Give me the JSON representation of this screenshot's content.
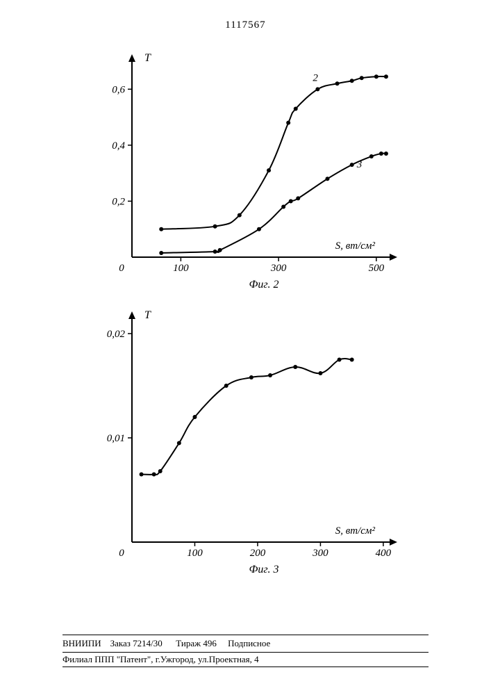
{
  "doc_number": "1117567",
  "fig2": {
    "type": "line",
    "caption": "Фиг. 2",
    "y_label": "T",
    "x_label": "S, вт/см²",
    "x_ticks": [
      0,
      100,
      300,
      500
    ],
    "y_ticks": [
      0,
      0.2,
      0.4,
      0.6
    ],
    "xlim": [
      0,
      540
    ],
    "ylim": [
      0,
      0.72
    ],
    "series": [
      {
        "label": "2",
        "label_x": 370,
        "label_y": 0.63,
        "points": [
          {
            "x": 60,
            "y": 0.1
          },
          {
            "x": 170,
            "y": 0.11
          },
          {
            "x": 220,
            "y": 0.15
          },
          {
            "x": 280,
            "y": 0.31
          },
          {
            "x": 320,
            "y": 0.48
          },
          {
            "x": 335,
            "y": 0.53
          },
          {
            "x": 380,
            "y": 0.6
          },
          {
            "x": 420,
            "y": 0.62
          },
          {
            "x": 450,
            "y": 0.63
          },
          {
            "x": 470,
            "y": 0.64
          },
          {
            "x": 500,
            "y": 0.645
          },
          {
            "x": 520,
            "y": 0.645
          }
        ]
      },
      {
        "label": "3",
        "label_x": 460,
        "label_y": 0.32,
        "points": [
          {
            "x": 60,
            "y": 0.015
          },
          {
            "x": 170,
            "y": 0.02
          },
          {
            "x": 180,
            "y": 0.025
          },
          {
            "x": 260,
            "y": 0.1
          },
          {
            "x": 310,
            "y": 0.18
          },
          {
            "x": 325,
            "y": 0.2
          },
          {
            "x": 340,
            "y": 0.21
          },
          {
            "x": 400,
            "y": 0.28
          },
          {
            "x": 450,
            "y": 0.33
          },
          {
            "x": 490,
            "y": 0.36
          },
          {
            "x": 510,
            "y": 0.37
          },
          {
            "x": 520,
            "y": 0.37
          }
        ]
      }
    ],
    "line_color": "#000000",
    "marker_radius": 3,
    "axis_width": 2,
    "tick_len": 6,
    "arrowhead": 9,
    "font_axis": 15,
    "font_caption": 16,
    "font_series": 15
  },
  "fig3": {
    "type": "line",
    "caption": "Фиг. 3",
    "y_label": "T",
    "x_label": "S, вт/см²",
    "x_ticks": [
      0,
      100,
      200,
      300,
      400
    ],
    "y_ticks": [
      0,
      0.01,
      0.02
    ],
    "xlim": [
      0,
      420
    ],
    "ylim": [
      0,
      0.022
    ],
    "series": [
      {
        "label": "",
        "points": [
          {
            "x": 15,
            "y": 0.0065
          },
          {
            "x": 35,
            "y": 0.0065
          },
          {
            "x": 45,
            "y": 0.0068
          },
          {
            "x": 75,
            "y": 0.0095
          },
          {
            "x": 100,
            "y": 0.012
          },
          {
            "x": 150,
            "y": 0.015
          },
          {
            "x": 190,
            "y": 0.0158
          },
          {
            "x": 220,
            "y": 0.016
          },
          {
            "x": 260,
            "y": 0.0168
          },
          {
            "x": 300,
            "y": 0.0162
          },
          {
            "x": 330,
            "y": 0.0175
          },
          {
            "x": 350,
            "y": 0.0175
          }
        ]
      }
    ],
    "line_color": "#000000",
    "marker_radius": 3,
    "axis_width": 2,
    "tick_len": 6,
    "arrowhead": 9,
    "font_axis": 15,
    "font_caption": 16
  },
  "footer": {
    "line1_parts": [
      "ВНИИПИ",
      "Заказ 7214/30",
      "Тираж 496",
      "Подписное"
    ],
    "line2": "Филиал ППП \"Патент\", г.Ужгород, ул.Проектная, 4"
  }
}
